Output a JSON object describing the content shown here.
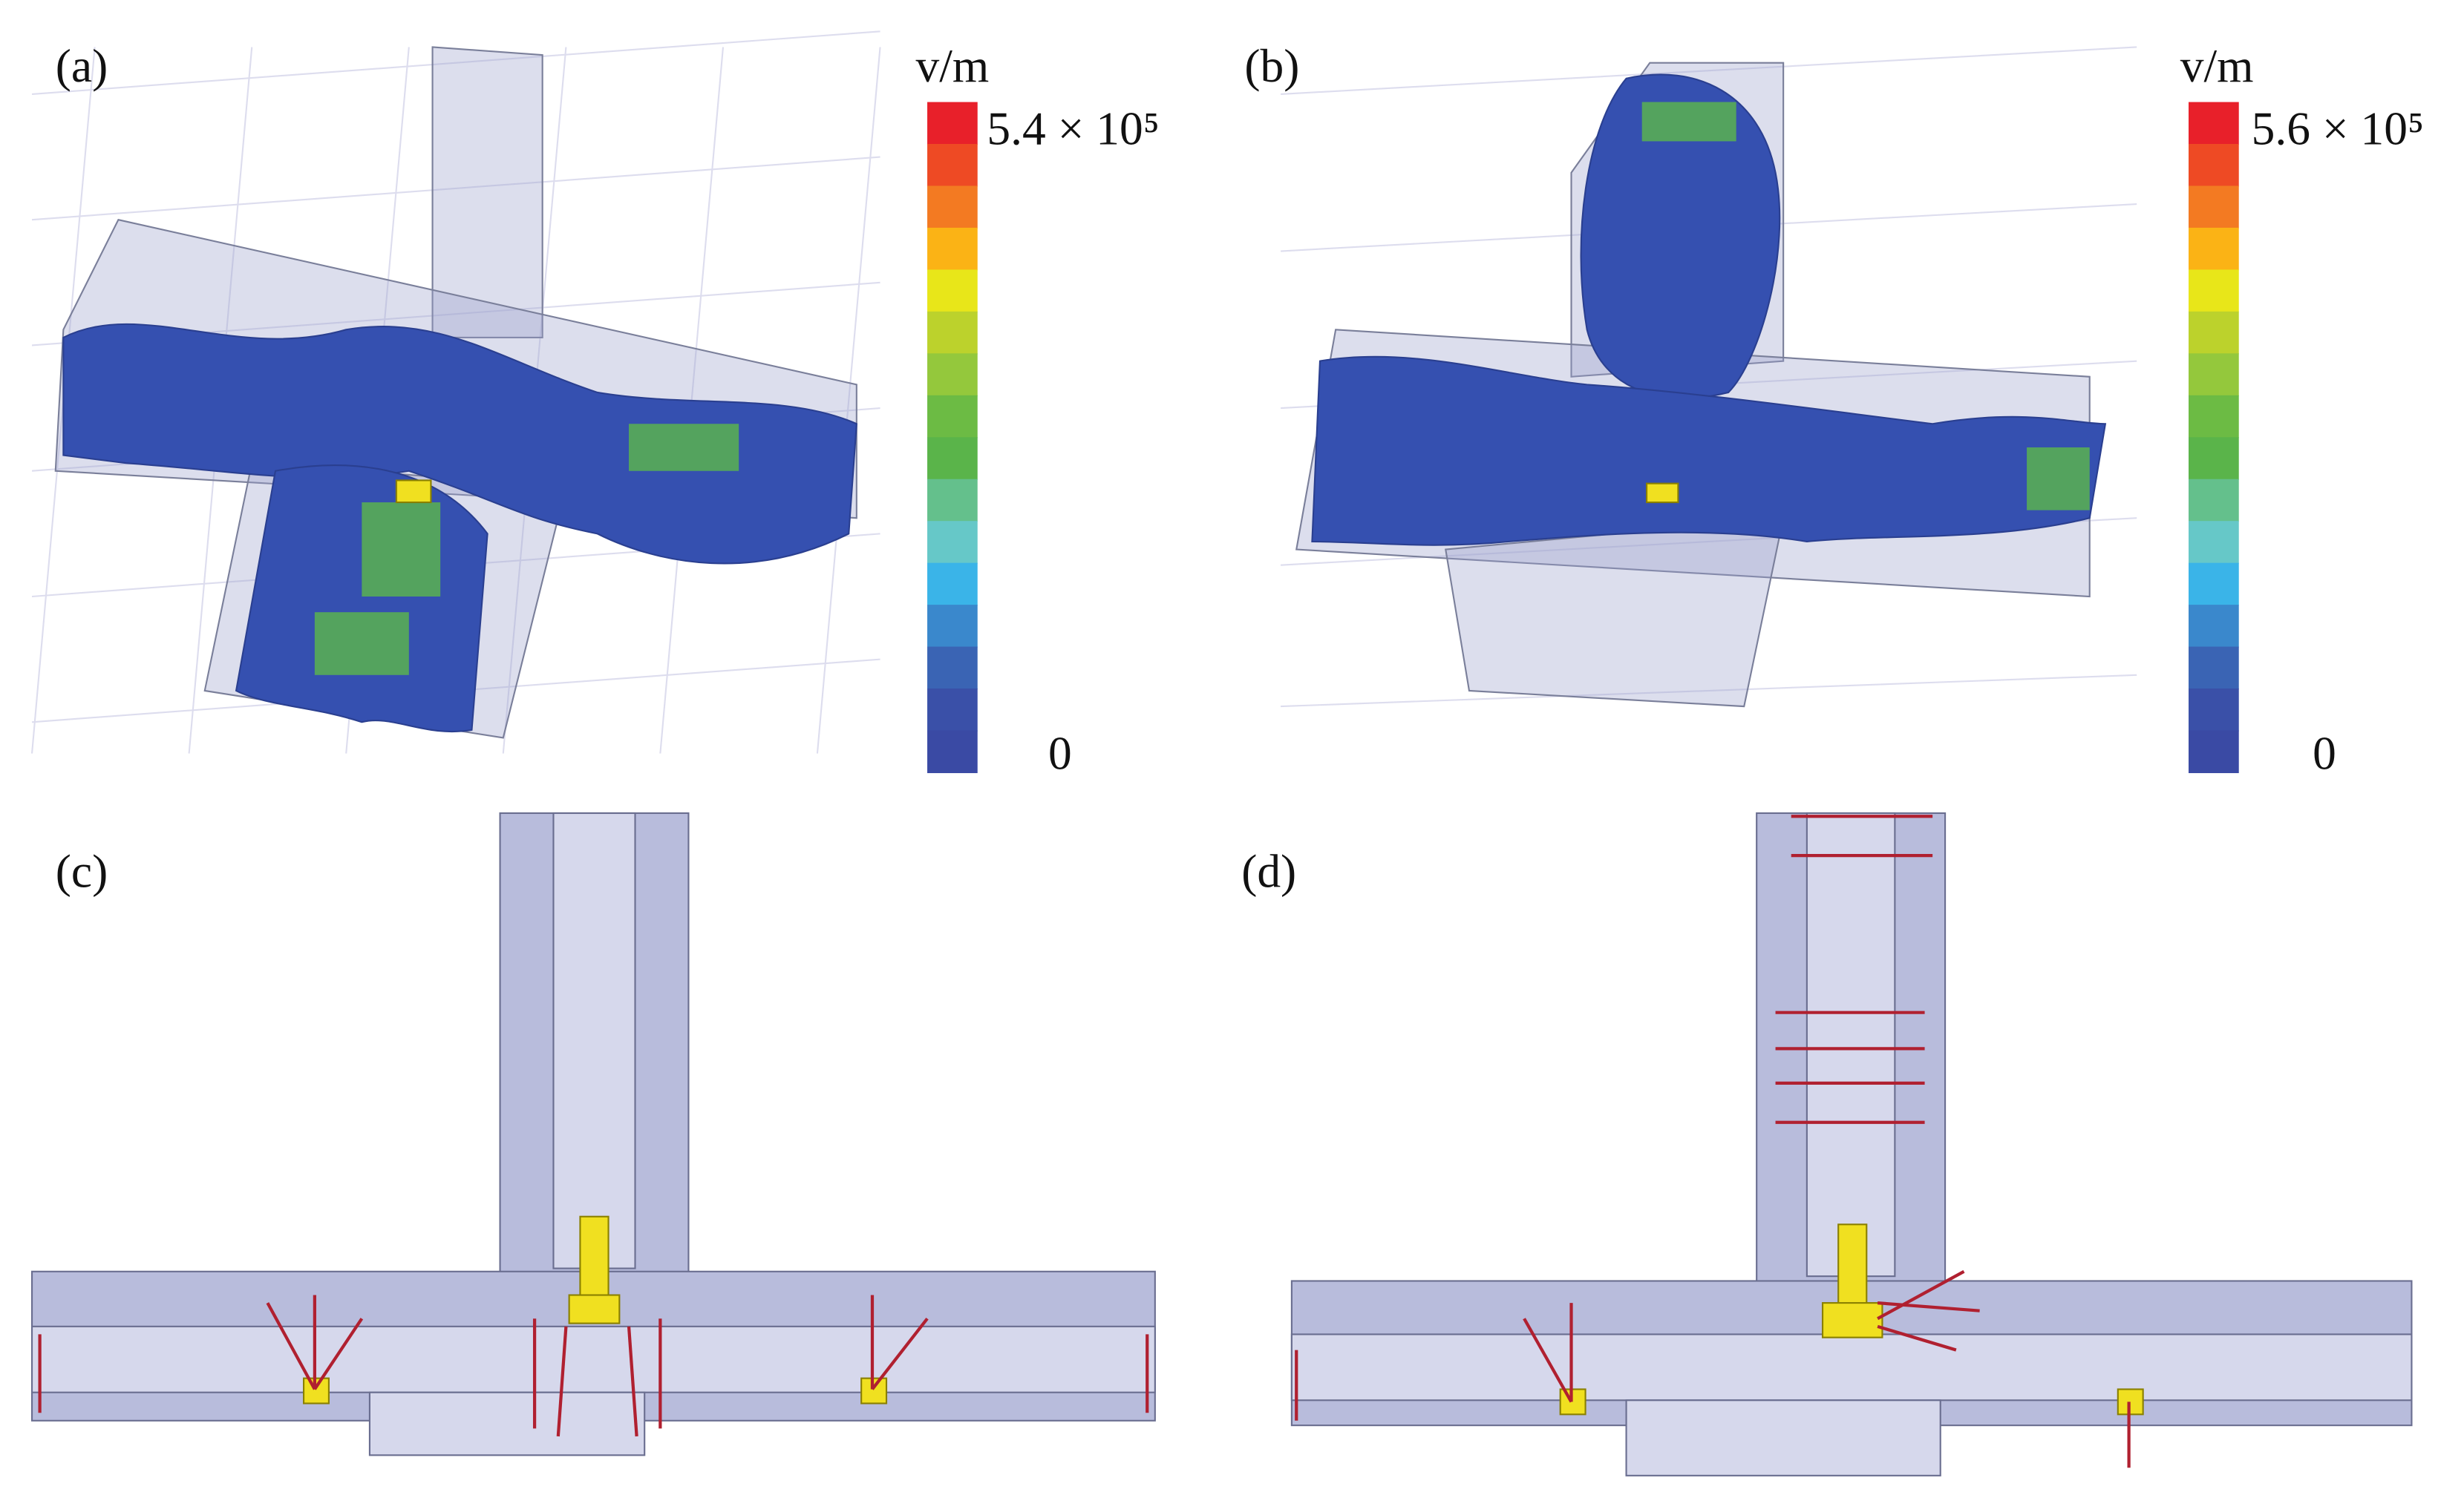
{
  "panels": [
    {
      "label": "(a)",
      "colorbar": {
        "unit": "v/m",
        "max_label": "5.4 × 10⁵",
        "min_label": "0"
      }
    },
    {
      "label": "(b)",
      "colorbar": {
        "unit": "v/m",
        "max_label": "5.6 × 10⁵",
        "min_label": "0"
      }
    },
    {
      "label": "(c)"
    },
    {
      "label": "(d)"
    }
  ],
  "colorbar_colors": [
    "#e8202a",
    "#ee4a24",
    "#f37a22",
    "#fbb315",
    "#e8e619",
    "#bcd22c",
    "#94c83c",
    "#6cbb44",
    "#5ab44a",
    "#64c08c",
    "#66c8c8",
    "#3ab4e8",
    "#3a88cc",
    "#3a64b4",
    "#3a50a8",
    "#3a4aa4"
  ]
}
